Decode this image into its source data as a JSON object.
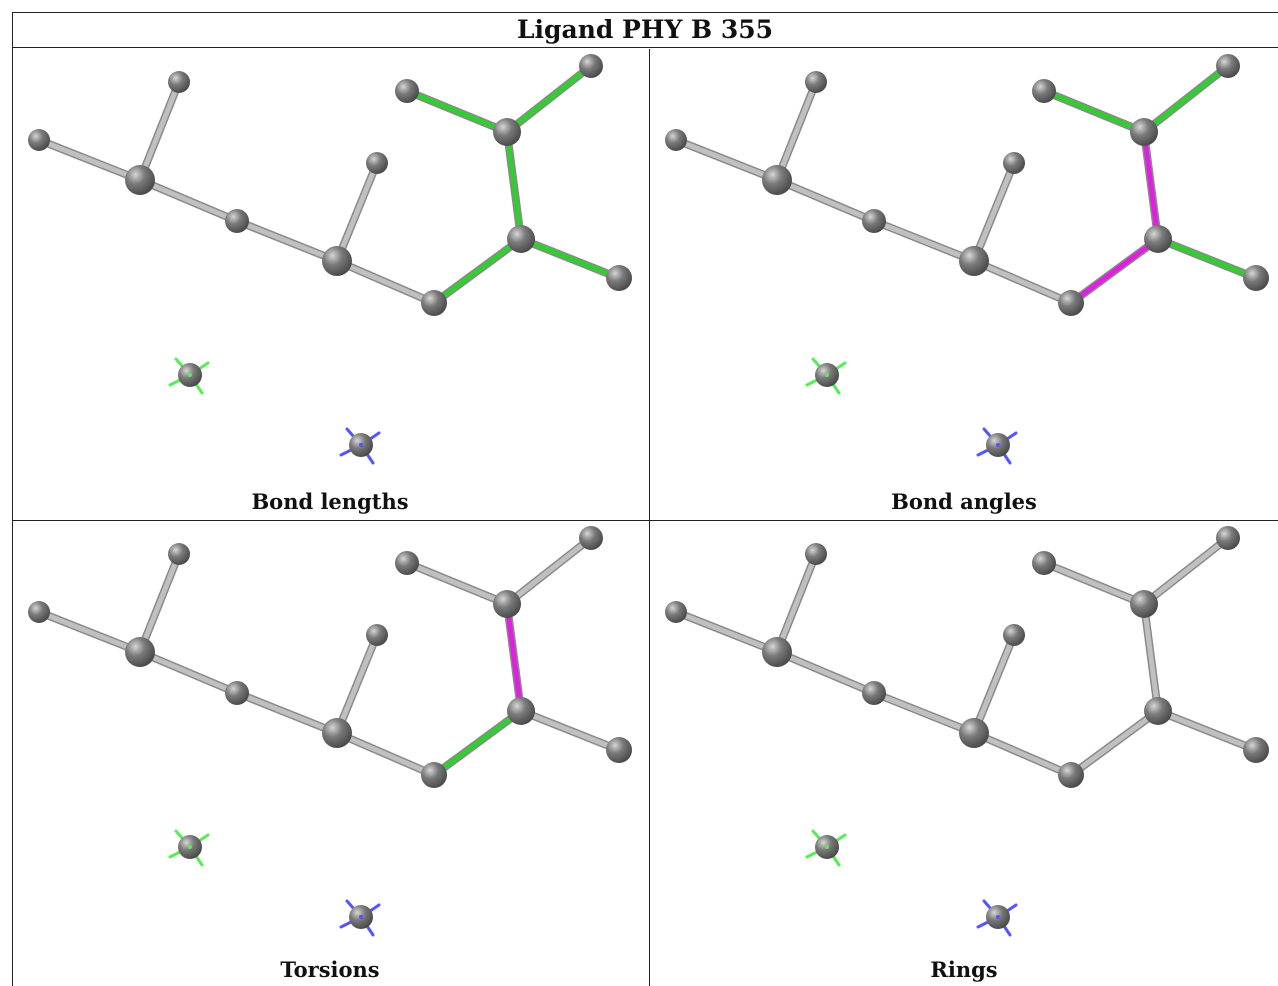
{
  "title": "Ligand PHY B 355",
  "panels": [
    {
      "caption": "Bond lengths",
      "highlight": {
        "green": [
          0,
          1,
          2,
          3,
          4,
          5
        ],
        "magenta": []
      }
    },
    {
      "caption": "Bond angles",
      "highlight": {
        "green": [
          0,
          1,
          4,
          5
        ],
        "magenta": [
          2,
          3
        ]
      }
    },
    {
      "caption": "Torsions",
      "highlight": {
        "green": [
          3
        ],
        "magenta": [
          2
        ]
      }
    },
    {
      "caption": "Rings",
      "highlight": {
        "green": [],
        "magenta": []
      }
    }
  ],
  "colors": {
    "atom": "#7a7a7a",
    "bond_default": "#c0c0c0",
    "bond_green": "#33cc33",
    "bond_magenta": "#e020e0",
    "ion_green": "#55ee55",
    "ion_blue": "#5555ff"
  }
}
